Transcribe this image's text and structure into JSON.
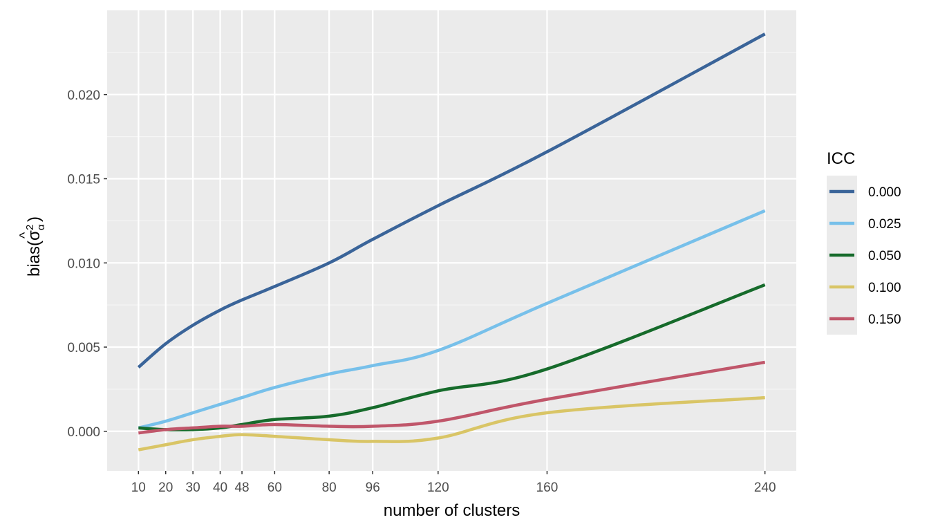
{
  "chart_data": {
    "type": "line",
    "xlabel": "number of clusters",
    "ylabel": {
      "prefix": "bias(",
      "symbol": "σ",
      "hat": "^",
      "superscript": "2",
      "subscript": "α",
      "suffix": ")"
    },
    "x_ticks": [
      10,
      20,
      30,
      40,
      48,
      60,
      80,
      96,
      120,
      160,
      240
    ],
    "y_ticks": [
      0.0,
      0.005,
      0.01,
      0.015,
      0.02
    ],
    "y_tick_labels": [
      "0.000",
      "0.005",
      "0.010",
      "0.015",
      "0.020"
    ],
    "xlim": [
      -1.5,
      251.5
    ],
    "ylim": [
      -0.00235,
      0.025
    ],
    "grid": true,
    "legend": {
      "title": "ICC",
      "placement": "right"
    },
    "series": [
      {
        "name": "0.000",
        "color": "#3a6499",
        "x": [
          10,
          20,
          30,
          40,
          48,
          60,
          80,
          96,
          120,
          160,
          240
        ],
        "y": [
          0.0038,
          0.0052,
          0.0063,
          0.0072,
          0.0078,
          0.0086,
          0.01,
          0.0114,
          0.0134,
          0.0166,
          0.0236
        ]
      },
      {
        "name": "0.025",
        "color": "#77c0ea",
        "x": [
          10,
          20,
          30,
          40,
          48,
          60,
          80,
          96,
          120,
          160,
          240
        ],
        "y": [
          0.0002,
          0.0006,
          0.0011,
          0.0016,
          0.002,
          0.0026,
          0.0034,
          0.0039,
          0.0048,
          0.0076,
          0.0131
        ]
      },
      {
        "name": "0.050",
        "color": "#166b2b",
        "x": [
          10,
          20,
          30,
          40,
          48,
          60,
          80,
          96,
          120,
          160,
          240
        ],
        "y": [
          0.0002,
          0.0001,
          0.0001,
          0.0002,
          0.0004,
          0.0007,
          0.0009,
          0.0014,
          0.0024,
          0.0037,
          0.0087
        ]
      },
      {
        "name": "0.100",
        "color": "#d9c566",
        "x": [
          10,
          20,
          30,
          40,
          48,
          60,
          80,
          96,
          120,
          160,
          240
        ],
        "y": [
          -0.0011,
          -0.0008,
          -0.0005,
          -0.0003,
          -0.0002,
          -0.0003,
          -0.0005,
          -0.0006,
          -0.0004,
          0.0011,
          0.002
        ]
      },
      {
        "name": "0.150",
        "color": "#c0566a",
        "x": [
          10,
          20,
          30,
          40,
          48,
          60,
          80,
          96,
          120,
          160,
          240
        ],
        "y": [
          -0.0001,
          0.0001,
          0.0002,
          0.0003,
          0.0003,
          0.0004,
          0.0003,
          0.0003,
          0.0006,
          0.0019,
          0.0041
        ]
      }
    ]
  }
}
